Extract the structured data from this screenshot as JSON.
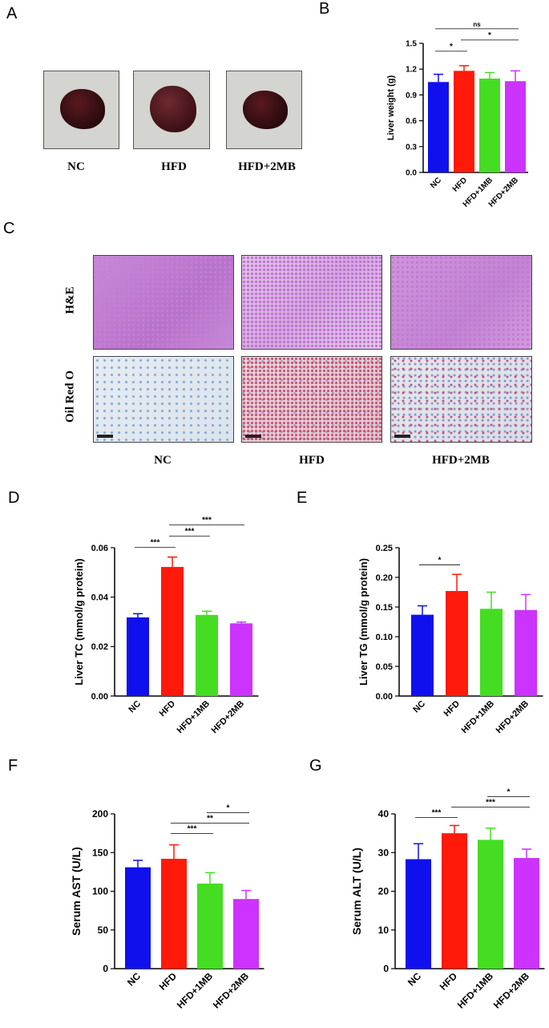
{
  "panels": {
    "a": "A",
    "b": "B",
    "c": "C",
    "d": "D",
    "e": "E",
    "f": "F",
    "g": "G"
  },
  "photo_labels": [
    "NC",
    "HFD",
    "HFD+2MB"
  ],
  "histology": {
    "row_labels": [
      "H&E",
      "Oil Red O"
    ],
    "col_labels": [
      "NC",
      "HFD",
      "HFD+2MB"
    ]
  },
  "colors": {
    "NC": "#1010ee",
    "HFD": "#ff1a0a",
    "HFD+1MB": "#44dd22",
    "HFD+2MB": "#cc33ff"
  },
  "chart_data": [
    {
      "panel": "B",
      "type": "bar",
      "categories": [
        "NC",
        "HFD",
        "HFD+1MB",
        "HFD+2MB"
      ],
      "values": [
        1.05,
        1.18,
        1.09,
        1.06
      ],
      "errors": [
        0.09,
        0.06,
        0.07,
        0.12
      ],
      "ylabel": "Liver weight (g)",
      "ylim": [
        0,
        1.5
      ],
      "yticks": [
        0.0,
        0.3,
        0.6,
        0.9,
        1.2,
        1.5
      ],
      "ytick_labels": [
        "0.0",
        "0.3",
        "0.6",
        "0.9",
        "1.2",
        "1.5"
      ],
      "significance": [
        {
          "from": 0,
          "to": 1,
          "label": "*"
        },
        {
          "from": 1,
          "to": 3,
          "label": "*"
        },
        {
          "from": 0,
          "to": 3,
          "label": "ns"
        }
      ]
    },
    {
      "panel": "D",
      "type": "bar",
      "categories": [
        "NC",
        "HFD",
        "HFD+1MB",
        "HFD+2MB"
      ],
      "values": [
        0.0318,
        0.0522,
        0.0328,
        0.0294
      ],
      "errors": [
        0.0015,
        0.004,
        0.0015,
        0.0005
      ],
      "ylabel": "Liver TC (mmol/g protein)",
      "ylim": [
        0,
        0.06
      ],
      "yticks": [
        0.0,
        0.02,
        0.04,
        0.06
      ],
      "ytick_labels": [
        "0.00",
        "0.02",
        "0.04",
        "0.06"
      ],
      "significance": [
        {
          "from": 0,
          "to": 1,
          "label": "***"
        },
        {
          "from": 1,
          "to": 2,
          "label": "***"
        },
        {
          "from": 1,
          "to": 3,
          "label": "***"
        }
      ]
    },
    {
      "panel": "E",
      "type": "bar",
      "categories": [
        "NC",
        "HFD",
        "HFD+1MB",
        "HFD+2MB"
      ],
      "values": [
        0.137,
        0.177,
        0.147,
        0.145
      ],
      "errors": [
        0.015,
        0.028,
        0.028,
        0.026
      ],
      "ylabel": "Liver TG (mmol/g protein)",
      "ylim": [
        0,
        0.25
      ],
      "yticks": [
        0.0,
        0.05,
        0.1,
        0.15,
        0.2,
        0.25
      ],
      "ytick_labels": [
        "0.00",
        "0.05",
        "0.10",
        "0.15",
        "0.20",
        "0.25"
      ],
      "significance": [
        {
          "from": 0,
          "to": 1,
          "label": "*"
        }
      ]
    },
    {
      "panel": "F",
      "type": "bar",
      "categories": [
        "NC",
        "HFD",
        "HFD+1MB",
        "HFD+2MB"
      ],
      "values": [
        131,
        142,
        110,
        90
      ],
      "errors": [
        9,
        18,
        14,
        11
      ],
      "ylabel": "Serum AST (U/L)",
      "ylim": [
        0,
        200
      ],
      "yticks": [
        0,
        50,
        100,
        150,
        200
      ],
      "ytick_labels": [
        "0",
        "50",
        "100",
        "150",
        "200"
      ],
      "significance": [
        {
          "from": 1,
          "to": 2,
          "label": "***"
        },
        {
          "from": 1,
          "to": 3,
          "label": "**"
        },
        {
          "from": 2,
          "to": 3,
          "label": "*"
        }
      ]
    },
    {
      "panel": "G",
      "type": "bar",
      "categories": [
        "NC",
        "HFD",
        "HFD+1MB",
        "HFD+2MB"
      ],
      "values": [
        28.3,
        35.0,
        33.3,
        28.6
      ],
      "errors": [
        4.0,
        2.0,
        3.0,
        2.3
      ],
      "ylabel": "Serum ALT (U/L)",
      "ylim": [
        0,
        40
      ],
      "yticks": [
        0,
        10,
        20,
        30,
        40
      ],
      "ytick_labels": [
        "0",
        "10",
        "20",
        "30",
        "40"
      ],
      "significance": [
        {
          "from": 0,
          "to": 1,
          "label": "***"
        },
        {
          "from": 1,
          "to": 3,
          "label": "***"
        },
        {
          "from": 2,
          "to": 3,
          "label": "*"
        }
      ]
    }
  ]
}
